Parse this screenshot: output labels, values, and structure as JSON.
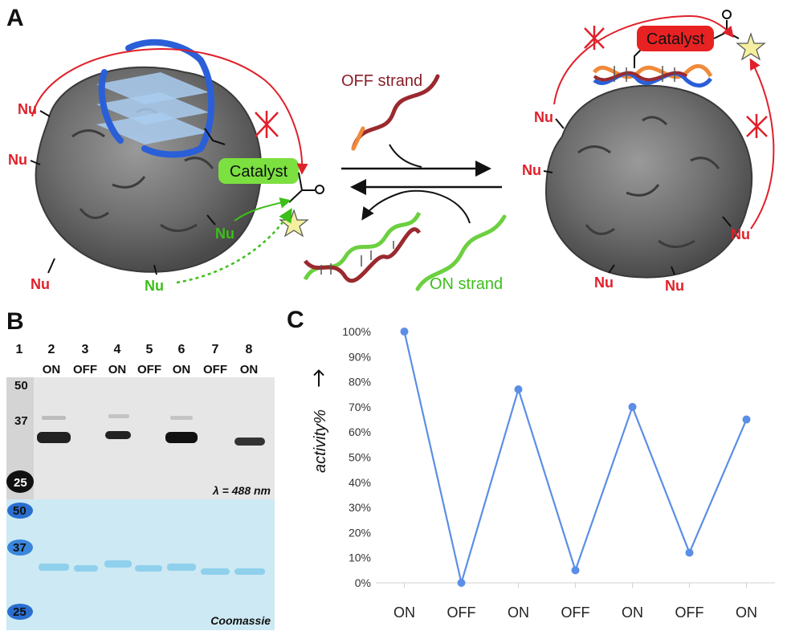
{
  "panel_a": {
    "letter": "A",
    "nu_label": "Nu",
    "catalyst_label": "Catalyst",
    "off_strand_label": "OFF strand",
    "on_strand_label": "ON strand"
  },
  "panel_b": {
    "letter": "B",
    "lanes": [
      {
        "number": "1",
        "state": ""
      },
      {
        "number": "2",
        "state": "ON"
      },
      {
        "number": "3",
        "state": "OFF"
      },
      {
        "number": "4",
        "state": "ON"
      },
      {
        "number": "5",
        "state": "OFF"
      },
      {
        "number": "6",
        "state": "ON"
      },
      {
        "number": "7",
        "state": "OFF"
      },
      {
        "number": "8",
        "state": "ON"
      }
    ],
    "markers": [
      "50",
      "37",
      "25"
    ],
    "fluorescence_caption": "λ = 488 nm",
    "stain_caption": "Coomassie",
    "colors": {
      "fluorescence_bg": "#e8e8e8",
      "coomassie_bg": "#cfeaf5",
      "band": "#111111",
      "coomassie_band": "#7fc8e8"
    }
  },
  "panel_c": {
    "letter": "C"
  },
  "chart_data": {
    "type": "line",
    "categories": [
      "ON",
      "OFF",
      "ON",
      "OFF",
      "ON",
      "OFF",
      "ON"
    ],
    "values": [
      100,
      0,
      77,
      5,
      70,
      12,
      65
    ],
    "ylabel": "activity%",
    "ylim": [
      0,
      100
    ],
    "yticks": [
      "0%",
      "10%",
      "20%",
      "30%",
      "40%",
      "50%",
      "60%",
      "70%",
      "80%",
      "90%",
      "100%"
    ],
    "grid": false,
    "series_color": "#5b8ee6"
  }
}
